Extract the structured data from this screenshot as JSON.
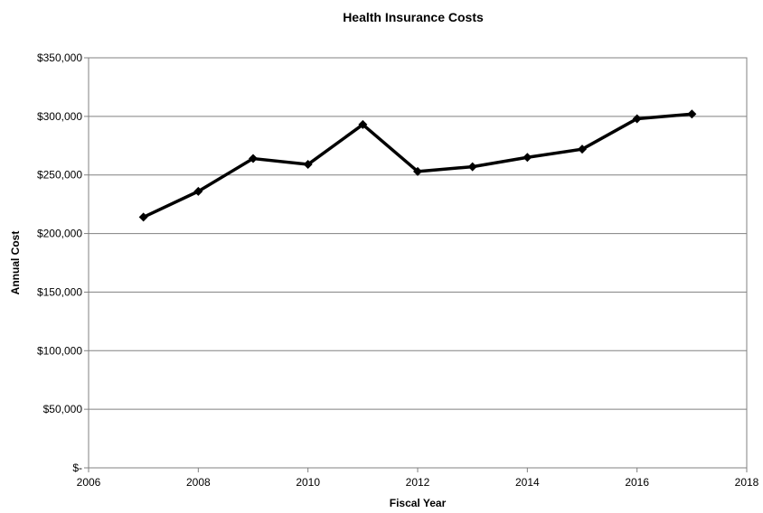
{
  "chart_data": {
    "type": "line",
    "title": "Health Insurance Costs",
    "xlabel": "Fiscal Year",
    "ylabel": "Annual Cost",
    "xlim": [
      2006,
      2018
    ],
    "ylim": [
      0,
      350000
    ],
    "x_ticks": [
      2006,
      2008,
      2010,
      2012,
      2014,
      2016,
      2018
    ],
    "y_ticks": [
      0,
      50000,
      100000,
      150000,
      200000,
      250000,
      300000,
      350000
    ],
    "y_tick_labels": [
      "$-",
      "$50,000",
      "$100,000",
      "$150,000",
      "$200,000",
      "$250,000",
      "$300,000",
      "$350,000"
    ],
    "grid": "horizontal",
    "legend": "none",
    "series": [
      {
        "color": "#000000",
        "marker": "diamond",
        "x": [
          2007,
          2008,
          2009,
          2010,
          2011,
          2012,
          2013,
          2014,
          2015,
          2016,
          2017
        ],
        "y": [
          214000,
          236000,
          264000,
          259000,
          293000,
          253000,
          257000,
          265000,
          272000,
          298000,
          302000
        ]
      }
    ]
  }
}
